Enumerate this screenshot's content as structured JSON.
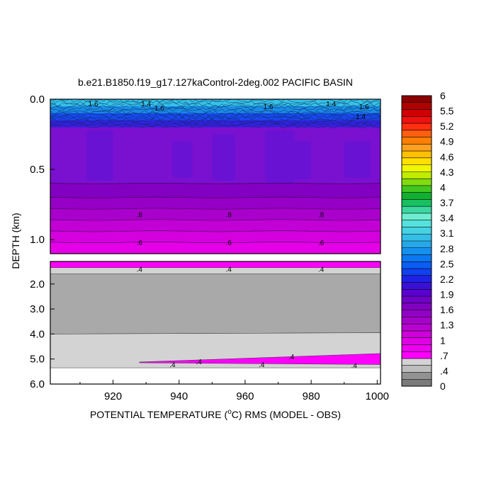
{
  "chart_data": {
    "type": "heatmap",
    "title": "b.e21.B1850.f19_g17.127kaControl-2deg.002 PACIFIC BASIN",
    "xlabel_prefix": "POTENTIAL TEMPERATURE (",
    "xlabel_sup": "o",
    "xlabel_suffix": "C) RMS (MODEL - OBS)",
    "ylabel": "DEPTH (km)",
    "xlim": [
      901,
      1001
    ],
    "x_ticks": [
      920,
      940,
      960,
      980,
      1000
    ],
    "x_tick_labels": [
      "920",
      "940",
      "960",
      "980",
      "1000"
    ],
    "upper_panel": {
      "ylim": [
        0,
        1.1
      ],
      "y_ticks": [
        0.0,
        0.5,
        1.0
      ],
      "y_tick_labels": [
        "0.0",
        "0.5",
        "1.0"
      ],
      "bands": [
        {
          "top": 0.0,
          "bottom": 0.05,
          "value": 1.8
        },
        {
          "top": 0.05,
          "bottom": 0.1,
          "value": 1.5
        },
        {
          "top": 0.1,
          "bottom": 0.15,
          "value": 1.25
        },
        {
          "top": 0.15,
          "bottom": 0.2,
          "value": 1.1
        },
        {
          "top": 0.2,
          "bottom": 0.6,
          "value": 0.97
        },
        {
          "top": 0.6,
          "bottom": 0.7,
          "value": 0.93
        },
        {
          "top": 0.7,
          "bottom": 0.78,
          "value": 0.87
        },
        {
          "top": 0.78,
          "bottom": 0.86,
          "value": 0.8
        },
        {
          "top": 0.86,
          "bottom": 0.94,
          "value": 0.74
        },
        {
          "top": 0.94,
          "bottom": 1.02,
          "value": 0.67
        },
        {
          "top": 1.02,
          "bottom": 1.1,
          "value": 0.6
        }
      ],
      "contour_labels": [
        {
          "x": 914,
          "y": 0.03,
          "text": "1.6"
        },
        {
          "x": 930,
          "y": 0.03,
          "text": "1.4"
        },
        {
          "x": 934,
          "y": 0.06,
          "text": "1.6"
        },
        {
          "x": 967,
          "y": 0.05,
          "text": "1.6"
        },
        {
          "x": 986,
          "y": 0.03,
          "text": "1.4"
        },
        {
          "x": 996,
          "y": 0.05,
          "text": "1.6"
        },
        {
          "x": 995,
          "y": 0.12,
          "text": "1.4"
        },
        {
          "x": 928,
          "y": 0.82,
          "text": ".8"
        },
        {
          "x": 955,
          "y": 0.82,
          "text": ".8"
        },
        {
          "x": 983,
          "y": 0.82,
          "text": ".8"
        },
        {
          "x": 928,
          "y": 1.02,
          "text": ".6"
        },
        {
          "x": 955,
          "y": 1.02,
          "text": ".6"
        },
        {
          "x": 983,
          "y": 1.02,
          "text": ".6"
        }
      ]
    },
    "lower_panel": {
      "ylim": [
        1.1,
        6.0
      ],
      "y_ticks": [
        2.0,
        3.0,
        4.0,
        5.0,
        6.0
      ],
      "y_tick_labels": [
        "2.0",
        "3.0",
        "4.0",
        "5.0",
        "6.0"
      ],
      "regions": [
        {
          "name": "surface-band",
          "value": 0.45,
          "points": [
            [
              901,
              1.1
            ],
            [
              1001,
              1.1
            ],
            [
              1001,
              1.35
            ],
            [
              901,
              1.35
            ]
          ]
        },
        {
          "name": "light-gray-upper",
          "value": 0.37,
          "points": [
            [
              901,
              1.35
            ],
            [
              1001,
              1.35
            ],
            [
              1001,
              1.6
            ],
            [
              901,
              1.6
            ]
          ]
        },
        {
          "name": "dark-gray",
          "value": 0.33,
          "points": [
            [
              901,
              1.6
            ],
            [
              1001,
              1.6
            ],
            [
              1001,
              3.95
            ],
            [
              901,
              4.0
            ]
          ]
        },
        {
          "name": "light-gray-lower",
          "value": 0.37,
          "points": [
            [
              901,
              4.0
            ],
            [
              1001,
              3.95
            ],
            [
              1001,
              5.35
            ],
            [
              901,
              5.35
            ]
          ]
        },
        {
          "name": "deep-wedge",
          "value": 0.43,
          "points": [
            [
              928,
              5.12
            ],
            [
              1001,
              4.78
            ],
            [
              1001,
              5.22
            ],
            [
              928,
              5.15
            ]
          ]
        }
      ],
      "contour_labels": [
        {
          "x": 928,
          "y": 1.4,
          "text": ".4"
        },
        {
          "x": 955,
          "y": 1.4,
          "text": ".4"
        },
        {
          "x": 983,
          "y": 1.4,
          "text": ".4"
        },
        {
          "x": 938,
          "y": 5.2,
          "text": ".4"
        },
        {
          "x": 946,
          "y": 5.1,
          "text": ".4"
        },
        {
          "x": 965,
          "y": 5.2,
          "text": ".4"
        },
        {
          "x": 974,
          "y": 4.9,
          "text": ".4"
        },
        {
          "x": 993,
          "y": 5.25,
          "text": ".4"
        }
      ]
    },
    "colorbar": {
      "min": 0,
      "max": 6,
      "labels": [
        "6",
        "5.5",
        "5.2",
        "4.9",
        "4.6",
        "4.3",
        "4",
        "3.7",
        "3.4",
        "3.1",
        "2.8",
        "2.5",
        "2.2",
        "1.9",
        "1.6",
        "1.3",
        "1",
        ".7",
        ".4",
        "0"
      ],
      "colors": [
        "#7a7a7a",
        "#929292",
        "#bdbdbd",
        "#d3d3d3",
        "#ff00ff",
        "#ef00f2",
        "#e000e6",
        "#cf00db",
        "#bb00d2",
        "#a600cb",
        "#9300c5",
        "#8000c0",
        "#7000c8",
        "#5a00d0",
        "#3a10d8",
        "#1f22e5",
        "#1040f0",
        "#0a5ef2",
        "#0a78f2",
        "#1590ee",
        "#25a7ea",
        "#35bde6",
        "#45d2e2",
        "#55e2dd",
        "#6eeed0",
        "#3cd6a0",
        "#18c060",
        "#10b030",
        "#40c820",
        "#80dc10",
        "#c0ec00",
        "#f0f800",
        "#ffe000",
        "#ffc000",
        "#ffa020",
        "#ff8000",
        "#ff6010",
        "#ff3010",
        "#f01010",
        "#d00000",
        "#b00000",
        "#8c0000"
      ]
    }
  }
}
